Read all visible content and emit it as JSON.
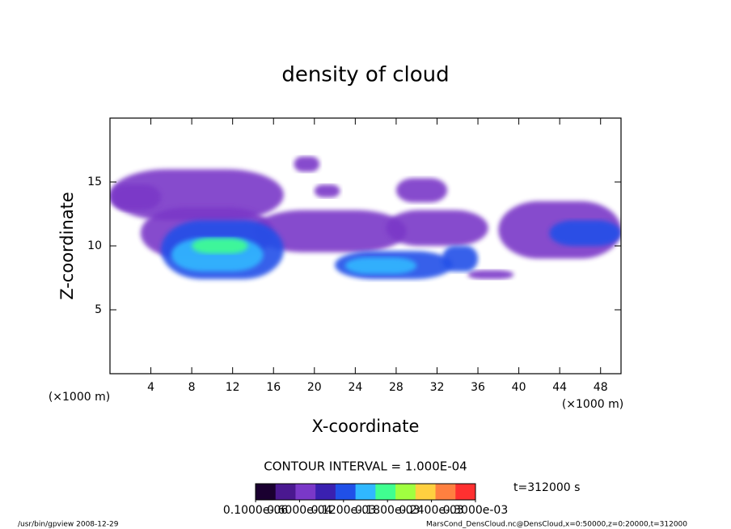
{
  "chart_data": {
    "type": "contour",
    "title": "density of cloud",
    "x_label": "X-coordinate",
    "y_label": "Z-coordinate",
    "x_unit_left": "(×1000 m)",
    "x_unit_right": "(×1000 m)",
    "xlim": [
      0,
      50
    ],
    "ylim": [
      0,
      20
    ],
    "xticks": [
      4,
      8,
      12,
      16,
      20,
      24,
      28,
      32,
      36,
      40,
      44,
      48
    ],
    "yticks": [
      5,
      10,
      15
    ],
    "contour_interval": "CONTOUR INTERVAL = 1.000E-04",
    "time_label": "t=312000 s",
    "footer_left": "/usr/bin/gpview   2008-12-29",
    "footer_right": "MarsCond_DensCloud.nc@DensCloud,x=0:50000,z=0:20000,t=312000",
    "colorbar": {
      "range": [
        0,
        0.0003
      ],
      "colors": [
        "#1a0030",
        "#4a1890",
        "#7a38c8",
        "#3a20b0",
        "#2050e8",
        "#30b8ff",
        "#40ff90",
        "#a0ff40",
        "#ffd040",
        "#ff8040",
        "#ff3030"
      ],
      "ticks": [
        {
          "value": 1e-07,
          "label": "0.1000e-06"
        },
        {
          "value": 6e-05,
          "label": "0.6000e-04"
        },
        {
          "value": 0.00012,
          "label": "0.1200e-03"
        },
        {
          "value": 0.00018,
          "label": "0.1800e-03"
        },
        {
          "value": 0.00024,
          "label": "0.2400e-03"
        },
        {
          "value": 0.0003,
          "label": "0.3000e-03"
        }
      ]
    },
    "blobs": [
      {
        "x": [
          0,
          17
        ],
        "z": [
          12,
          16
        ],
        "value": 6e-05
      },
      {
        "x": [
          0,
          5
        ],
        "z": [
          12.8,
          14.8
        ],
        "value": 5e-05
      },
      {
        "x": [
          3,
          16
        ],
        "z": [
          9,
          13
        ],
        "value": 6e-05
      },
      {
        "x": [
          14,
          29
        ],
        "z": [
          9.5,
          12.8
        ],
        "value": 6e-05
      },
      {
        "x": [
          27,
          37
        ],
        "z": [
          10,
          12.8
        ],
        "value": 6e-05
      },
      {
        "x": [
          38,
          50
        ],
        "z": [
          9,
          13.5
        ],
        "value": 6e-05
      },
      {
        "x": [
          43,
          50
        ],
        "z": [
          10,
          12
        ],
        "value": 0.00011
      },
      {
        "x": [
          28,
          33
        ],
        "z": [
          13.4,
          15.3
        ],
        "value": 6e-05
      },
      {
        "x": [
          18,
          20.5
        ],
        "z": [
          15.8,
          17
        ],
        "value": 6e-05
      },
      {
        "x": [
          20,
          22.5
        ],
        "z": [
          13.8,
          14.8
        ],
        "value": 6e-05
      },
      {
        "x": [
          35,
          39.5
        ],
        "z": [
          7.4,
          8.1
        ],
        "value": 6e-05
      },
      {
        "x": [
          5,
          17
        ],
        "z": [
          7.4,
          12
        ],
        "value": 0.00011
      },
      {
        "x": [
          6,
          15
        ],
        "z": [
          8,
          10.6
        ],
        "value": 0.00015
      },
      {
        "x": [
          8,
          13.5
        ],
        "z": [
          9.4,
          10.6
        ],
        "value": 0.00017
      },
      {
        "x": [
          22,
          33.5
        ],
        "z": [
          7.4,
          9.6
        ],
        "value": 0.00011
      },
      {
        "x": [
          23,
          30
        ],
        "z": [
          7.8,
          9.1
        ],
        "value": 0.00015
      },
      {
        "x": [
          32.5,
          36
        ],
        "z": [
          8,
          10
        ],
        "value": 0.00011
      }
    ]
  }
}
